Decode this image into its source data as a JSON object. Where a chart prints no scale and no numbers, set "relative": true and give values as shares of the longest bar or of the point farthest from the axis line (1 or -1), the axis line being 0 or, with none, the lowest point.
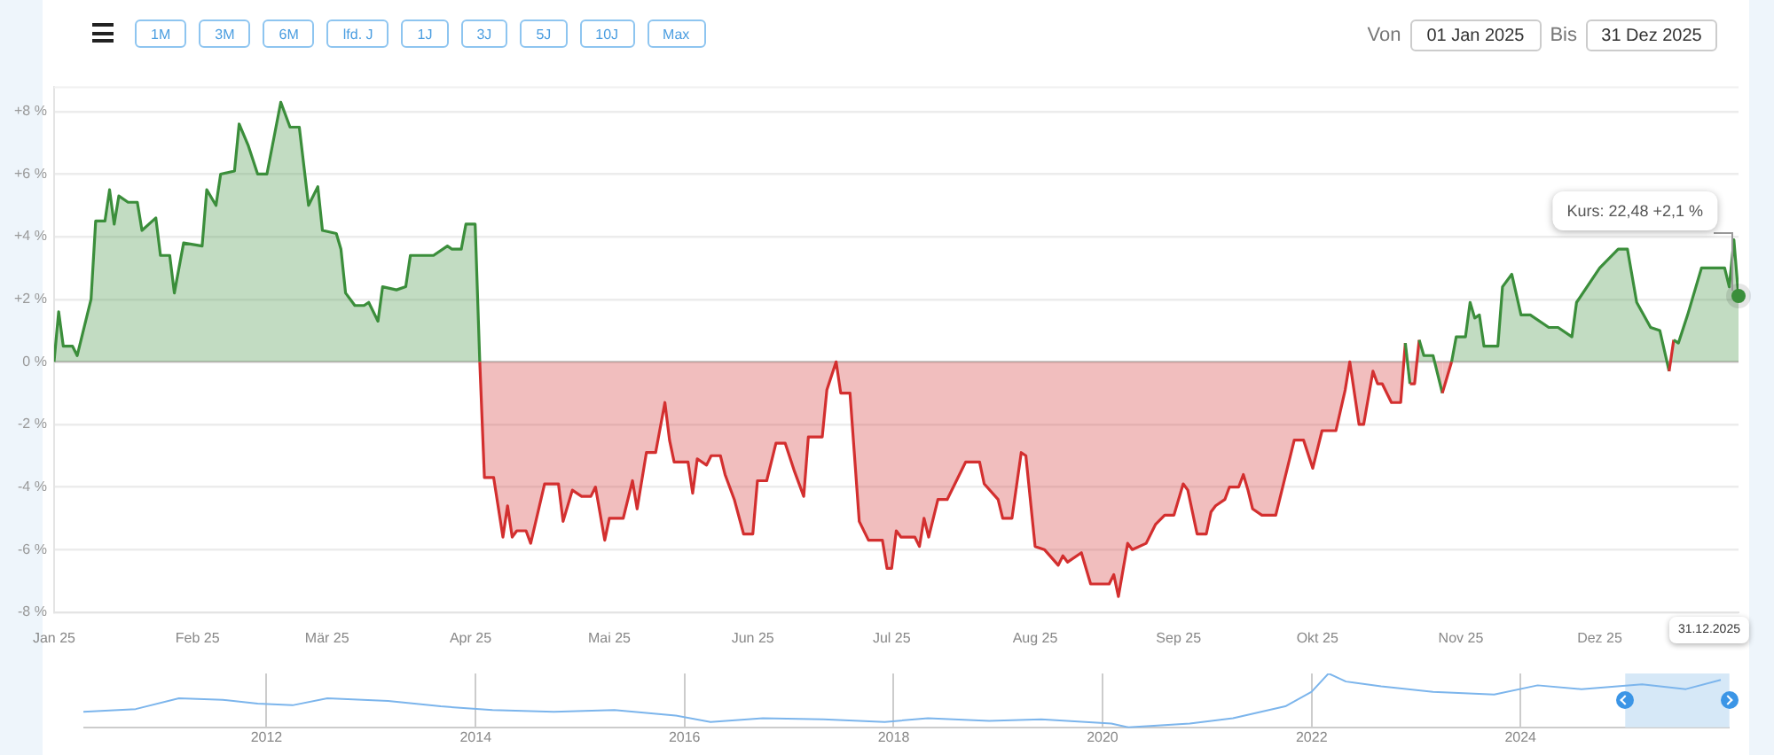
{
  "chart_data": [
    {
      "type": "area",
      "grid": "y",
      "marker": "none",
      "xlim": [
        "2025-01-01",
        "2025-12-31"
      ],
      "ylim": [
        -8,
        8.8
      ],
      "xticks": [
        {
          "value": "2025-01-01",
          "label": "Jan 25"
        },
        {
          "value": "2025-02-01",
          "label": "Feb 25"
        },
        {
          "value": "2025-03-01",
          "label": "Mär 25"
        },
        {
          "value": "2025-04-01",
          "label": "Apr 25"
        },
        {
          "value": "2025-05-01",
          "label": "Mai 25"
        },
        {
          "value": "2025-06-01",
          "label": "Jun 25"
        },
        {
          "value": "2025-07-01",
          "label": "Jul 25"
        },
        {
          "value": "2025-08-01",
          "label": "Aug 25"
        },
        {
          "value": "2025-09-01",
          "label": "Sep 25"
        },
        {
          "value": "2025-10-01",
          "label": "Okt 25"
        },
        {
          "value": "2025-11-01",
          "label": "Nov 25"
        },
        {
          "value": "2025-12-01",
          "label": "Dez 25"
        }
      ],
      "yticks": [
        {
          "value": -8,
          "label": "-8 %"
        },
        {
          "value": -6,
          "label": "-6 %"
        },
        {
          "value": -4,
          "label": "-4 %"
        },
        {
          "value": -2,
          "label": "-2 %"
        },
        {
          "value": 0,
          "label": "0 %"
        },
        {
          "value": 2,
          "label": "+2 %"
        },
        {
          "value": 4,
          "label": "+4 %"
        },
        {
          "value": 6,
          "label": "+6 %"
        },
        {
          "value": 8,
          "label": "+8 %"
        }
      ],
      "annotations": [
        "1M",
        "3M",
        "6M",
        "lfd. J",
        "1J",
        "3J",
        "5J",
        "10J",
        "Max",
        "Von",
        "01 Jan 2025",
        "Bis",
        "31 Dez 2025",
        "31.12.2025",
        "Kurs: 22,48 +2,1 %"
      ],
      "x": [
        "2025-01-01",
        "2025-01-02",
        "2025-01-03",
        "2025-01-05",
        "2025-01-06",
        "2025-01-09",
        "2025-01-10",
        "2025-01-12",
        "2025-01-13",
        "2025-01-14",
        "2025-01-15",
        "2025-01-17",
        "2025-01-19",
        "2025-01-20",
        "2025-01-23",
        "2025-01-24",
        "2025-01-26",
        "2025-01-27",
        "2025-01-29",
        "2025-02-02",
        "2025-02-03",
        "2025-02-05",
        "2025-02-06",
        "2025-02-09",
        "2025-02-10",
        "2025-02-12",
        "2025-02-14",
        "2025-02-16",
        "2025-02-19",
        "2025-02-21",
        "2025-02-23",
        "2025-02-25",
        "2025-02-27",
        "2025-02-28",
        "2025-03-03",
        "2025-03-04",
        "2025-03-05",
        "2025-03-07",
        "2025-03-09",
        "2025-03-10",
        "2025-03-12",
        "2025-03-13",
        "2025-03-16",
        "2025-03-18",
        "2025-03-19",
        "2025-03-24",
        "2025-03-27",
        "2025-03-28",
        "2025-03-30",
        "2025-03-31",
        "2025-04-02",
        "2025-04-03",
        "2025-04-04",
        "2025-04-06",
        "2025-04-08",
        "2025-04-09",
        "2025-04-10",
        "2025-04-11",
        "2025-04-13",
        "2025-04-14",
        "2025-04-17",
        "2025-04-20",
        "2025-04-21",
        "2025-04-23",
        "2025-04-25",
        "2025-04-27",
        "2025-04-28",
        "2025-04-30",
        "2025-05-01",
        "2025-05-04",
        "2025-05-06",
        "2025-05-07",
        "2025-05-09",
        "2025-05-11",
        "2025-05-13",
        "2025-05-14",
        "2025-05-15",
        "2025-05-18",
        "2025-05-19",
        "2025-05-20",
        "2025-05-22",
        "2025-05-23",
        "2025-05-25",
        "2025-05-26",
        "2025-05-28",
        "2025-05-30",
        "2025-06-01",
        "2025-06-02",
        "2025-06-04",
        "2025-06-06",
        "2025-06-08",
        "2025-06-10",
        "2025-06-12",
        "2025-06-13",
        "2025-06-16",
        "2025-06-17",
        "2025-06-19",
        "2025-06-20",
        "2025-06-22",
        "2025-06-24",
        "2025-06-26",
        "2025-06-29",
        "2025-06-30",
        "2025-07-01",
        "2025-07-02",
        "2025-07-03",
        "2025-07-06",
        "2025-07-07",
        "2025-07-08",
        "2025-07-09",
        "2025-07-11",
        "2025-07-13",
        "2025-07-17",
        "2025-07-20",
        "2025-07-21",
        "2025-07-24",
        "2025-07-25",
        "2025-07-27",
        "2025-07-29",
        "2025-07-30",
        "2025-08-01",
        "2025-08-03",
        "2025-08-06",
        "2025-08-07",
        "2025-08-08",
        "2025-08-11",
        "2025-08-13",
        "2025-08-17",
        "2025-08-18",
        "2025-08-19",
        "2025-08-21",
        "2025-08-22",
        "2025-08-25",
        "2025-08-27",
        "2025-08-29",
        "2025-08-31",
        "2025-09-02",
        "2025-09-03",
        "2025-09-05",
        "2025-09-07",
        "2025-09-08",
        "2025-09-09",
        "2025-09-11",
        "2025-09-12",
        "2025-09-14",
        "2025-09-15",
        "2025-09-16",
        "2025-09-17",
        "2025-09-19",
        "2025-09-22",
        "2025-09-26",
        "2025-09-28",
        "2025-09-30",
        "2025-10-01",
        "2025-10-02",
        "2025-10-05",
        "2025-10-07",
        "2025-10-08",
        "2025-10-10",
        "2025-10-11",
        "2025-10-13",
        "2025-10-14",
        "2025-10-15",
        "2025-10-17",
        "2025-10-19",
        "2025-10-20",
        "2025-10-21",
        "2025-10-22",
        "2025-10-23",
        "2025-10-24",
        "2025-10-26",
        "2025-10-28",
        "2025-10-30",
        "2025-10-31",
        "2025-11-02",
        "2025-11-03",
        "2025-11-04",
        "2025-11-05",
        "2025-11-06",
        "2025-11-09",
        "2025-11-10",
        "2025-11-12",
        "2025-11-14",
        "2025-11-16",
        "2025-11-20",
        "2025-11-22",
        "2025-11-25",
        "2025-11-26",
        "2025-12-01",
        "2025-12-05",
        "2025-12-07",
        "2025-12-09",
        "2025-12-12",
        "2025-12-14",
        "2025-12-16",
        "2025-12-17",
        "2025-12-18",
        "2025-12-20",
        "2025-12-23",
        "2025-12-28",
        "2025-12-29",
        "2025-12-30",
        "2025-12-31"
      ],
      "series": [
        {
          "color": "#3b8e3b",
          "values": [
            0,
            1.6,
            0.5,
            0.5,
            0.2,
            2.0,
            4.5,
            4.5,
            5.5,
            4.4,
            5.3,
            5.1,
            5.1,
            4.2,
            4.6,
            3.4,
            3.4,
            2.2,
            3.8,
            3.7,
            5.5,
            5.0,
            6.0,
            6.1,
            7.6,
            6.9,
            6.0,
            6.0,
            8.3,
            7.5,
            7.5,
            5.0,
            5.6,
            4.2,
            4.1,
            3.6,
            2.2,
            1.8,
            1.8,
            1.9,
            1.3,
            2.4,
            2.3,
            2.4,
            3.4,
            3.4,
            3.7,
            3.6,
            3.6,
            4.4,
            4.4,
            0,
            -3.7,
            -3.7,
            -5.6,
            -4.6,
            -5.6,
            -5.4,
            -5.4,
            -5.8,
            -3.9,
            -3.9,
            -5.1,
            -4.1,
            -4.3,
            -4.3,
            -4.0,
            -5.7,
            -5.0,
            -5.0,
            -3.8,
            -4.7,
            -2.9,
            -2.9,
            -1.3,
            -2.5,
            -3.2,
            -3.2,
            -4.2,
            -3.1,
            -3.3,
            -3.0,
            -3.0,
            -3.6,
            -4.4,
            -5.5,
            -5.5,
            -3.8,
            -3.8,
            -2.6,
            -2.6,
            -3.5,
            -4.3,
            -2.4,
            -2.4,
            -0.9,
            0,
            -1.0,
            -1.0,
            -5.1,
            -5.7,
            -5.7,
            -6.6,
            -6.6,
            -5.4,
            -5.6,
            -5.6,
            -5.9,
            -5.0,
            -5.6,
            -4.4,
            -4.4,
            -3.2,
            -3.2,
            -3.9,
            -4.4,
            -5.0,
            -5.0,
            -2.9,
            -3.0,
            -5.9,
            -6.0,
            -6.5,
            -6.2,
            -6.4,
            -6.1,
            -7.1,
            -7.1,
            -6.8,
            -7.5,
            -5.8,
            -6.0,
            -5.8,
            -5.2,
            -4.9,
            -4.9,
            -3.9,
            -4.1,
            -5.5,
            -5.5,
            -4.8,
            -4.6,
            -4.4,
            -4.0,
            -4.0,
            -3.6,
            -4.1,
            -4.7,
            -4.9,
            -4.9,
            -2.5,
            -2.5,
            -3.4,
            -2.8,
            -2.2,
            -2.2,
            -0.9,
            0,
            -2.0,
            -2.0,
            -0.3,
            -0.7,
            -0.7,
            -1.3,
            -1.3,
            0.6,
            -0.7,
            -0.7,
            0.7,
            0.2,
            0.2,
            -1.0,
            0,
            0.8,
            0.8,
            1.9,
            1.4,
            1.5,
            0.5,
            0.5,
            2.4,
            2.8,
            1.5,
            1.5,
            1.1,
            1.1,
            0.8,
            1.9,
            3.0,
            3.6,
            3.6,
            1.9,
            1.1,
            1.0,
            -0.3,
            0.7,
            0.6,
            1.5,
            3.0,
            3.0,
            2.4,
            3.9,
            2.1
          ],
          "colors": [
            "#3b8e3b",
            "#3b8e3b",
            "#3b8e3b",
            "#3b8e3b",
            "#3b8e3b",
            "#3b8e3b",
            "#3b8e3b",
            "#3b8e3b",
            "#3b8e3b",
            "#3b8e3b",
            "#3b8e3b",
            "#3b8e3b",
            "#3b8e3b",
            "#3b8e3b",
            "#3b8e3b",
            "#3b8e3b",
            "#3b8e3b",
            "#3b8e3b",
            "#3b8e3b",
            "#3b8e3b",
            "#3b8e3b",
            "#3b8e3b",
            "#3b8e3b",
            "#3b8e3b",
            "#3b8e3b",
            "#3b8e3b",
            "#3b8e3b",
            "#3b8e3b",
            "#3b8e3b",
            "#3b8e3b",
            "#3b8e3b",
            "#3b8e3b",
            "#3b8e3b",
            "#3b8e3b",
            "#3b8e3b",
            "#3b8e3b",
            "#3b8e3b",
            "#3b8e3b",
            "#3b8e3b",
            "#3b8e3b",
            "#3b8e3b",
            "#3b8e3b",
            "#3b8e3b",
            "#3b8e3b",
            "#3b8e3b",
            "#3b8e3b",
            "#3b8e3b",
            "#3b8e3b",
            "#3b8e3b",
            "#3b8e3b",
            "#3b8e3b",
            "#d32f2f",
            "#d32f2f",
            "#d32f2f",
            "#d32f2f",
            "#d32f2f",
            "#d32f2f",
            "#d32f2f",
            "#d32f2f",
            "#d32f2f",
            "#d32f2f",
            "#d32f2f",
            "#d32f2f",
            "#d32f2f",
            "#d32f2f",
            "#d32f2f",
            "#d32f2f",
            "#d32f2f",
            "#d32f2f",
            "#d32f2f",
            "#d32f2f",
            "#d32f2f",
            "#d32f2f",
            "#d32f2f",
            "#d32f2f",
            "#d32f2f",
            "#d32f2f",
            "#d32f2f",
            "#d32f2f",
            "#d32f2f",
            "#d32f2f",
            "#d32f2f",
            "#d32f2f",
            "#d32f2f",
            "#d32f2f",
            "#d32f2f",
            "#d32f2f",
            "#d32f2f",
            "#d32f2f",
            "#d32f2f",
            "#d32f2f",
            "#d32f2f",
            "#d32f2f",
            "#d32f2f",
            "#d32f2f",
            "#d32f2f",
            "#d32f2f",
            "#d32f2f",
            "#d32f2f",
            "#d32f2f",
            "#d32f2f",
            "#d32f2f",
            "#d32f2f",
            "#d32f2f",
            "#d32f2f",
            "#d32f2f",
            "#d32f2f",
            "#d32f2f",
            "#d32f2f",
            "#d32f2f",
            "#d32f2f",
            "#d32f2f",
            "#d32f2f",
            "#d32f2f",
            "#d32f2f",
            "#d32f2f",
            "#d32f2f",
            "#d32f2f",
            "#d32f2f",
            "#d32f2f",
            "#d32f2f",
            "#d32f2f",
            "#d32f2f",
            "#d32f2f",
            "#d32f2f",
            "#d32f2f",
            "#d32f2f",
            "#d32f2f",
            "#d32f2f",
            "#d32f2f",
            "#d32f2f",
            "#d32f2f",
            "#d32f2f",
            "#d32f2f",
            "#d32f2f",
            "#d32f2f",
            "#d32f2f",
            "#d32f2f",
            "#d32f2f",
            "#d32f2f",
            "#d32f2f",
            "#d32f2f",
            "#d32f2f",
            "#d32f2f",
            "#d32f2f",
            "#d32f2f",
            "#d32f2f",
            "#d32f2f",
            "#d32f2f",
            "#d32f2f",
            "#d32f2f",
            "#d32f2f",
            "#d32f2f",
            "#d32f2f",
            "#d32f2f",
            "#d32f2f",
            "#d32f2f",
            "#d32f2f",
            "#d32f2f",
            "#d32f2f",
            "#d32f2f",
            "#d32f2f",
            "#d32f2f",
            "#d32f2f",
            "#d32f2f",
            "#3b8e3b",
            "#d32f2f",
            "#d32f2f",
            "#3b8e3b",
            "#3b8e3b",
            "#3b8e3b",
            "#d32f2f",
            "#3b8e3b",
            "#3b8e3b",
            "#3b8e3b",
            "#3b8e3b",
            "#3b8e3b",
            "#3b8e3b",
            "#3b8e3b",
            "#3b8e3b",
            "#3b8e3b",
            "#3b8e3b",
            "#3b8e3b",
            "#3b8e3b",
            "#3b8e3b",
            "#3b8e3b",
            "#3b8e3b",
            "#3b8e3b",
            "#3b8e3b",
            "#3b8e3b",
            "#3b8e3b",
            "#3b8e3b",
            "#3b8e3b",
            "#3b8e3b",
            "#d32f2f",
            "#3b8e3b",
            "#3b8e3b",
            "#3b8e3b",
            "#3b8e3b",
            "#3b8e3b",
            "#3b8e3b",
            "#3b8e3b",
            "#3b8e3b"
          ]
        }
      ]
    },
    {
      "type": "line",
      "relative": true,
      "grid": "x",
      "tick_labels": "x",
      "xlim": [
        "2010-04",
        "2026-01"
      ],
      "xticks": [
        "2012",
        "2014",
        "2016",
        "2018",
        "2020",
        "2022",
        "2024"
      ],
      "bands": [
        {
          "axis": "x",
          "from": "2025-01-01",
          "to": "2025-12-31",
          "color": "#d6e8f7"
        }
      ],
      "x": [
        "2010-04",
        "2010-10",
        "2011-03",
        "2011-08",
        "2011-12",
        "2012-04",
        "2012-08",
        "2013-03",
        "2013-09",
        "2014-03",
        "2014-10",
        "2015-05",
        "2015-12",
        "2016-04",
        "2016-10",
        "2017-05",
        "2017-12",
        "2018-05",
        "2018-12",
        "2019-06",
        "2020-02",
        "2020-04",
        "2020-11",
        "2021-04",
        "2021-10",
        "2022-01",
        "2022-03",
        "2022-05",
        "2022-09",
        "2023-03",
        "2023-10",
        "2024-03",
        "2024-08",
        "2025-03",
        "2025-08",
        "2025-12"
      ],
      "series": [
        {
          "color": "#7cb5ec",
          "values": [
            0.29,
            0.34,
            0.54,
            0.51,
            0.44,
            0.41,
            0.54,
            0.49,
            0.39,
            0.32,
            0.29,
            0.32,
            0.22,
            0.1,
            0.17,
            0.15,
            0.1,
            0.17,
            0.12,
            0.15,
            0.07,
            0,
            0.07,
            0.17,
            0.39,
            0.66,
            1,
            0.85,
            0.76,
            0.66,
            0.61,
            0.78,
            0.71,
            0.8,
            0.71,
            0.88
          ]
        }
      ]
    }
  ]
}
